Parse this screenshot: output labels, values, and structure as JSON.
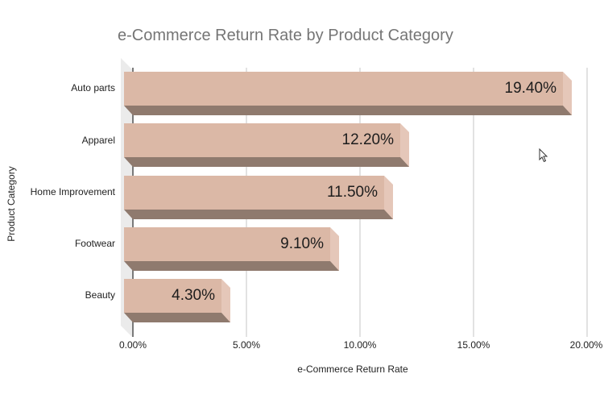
{
  "chart_data": {
    "type": "bar",
    "orientation": "horizontal",
    "style": "3d",
    "title": "e-Commerce Return Rate by Product Category",
    "xlabel": "e-Commerce Return Rate",
    "ylabel": "Product Category",
    "categories": [
      "Auto parts",
      "Apparel",
      "Home Improvement",
      "Footwear",
      "Beauty"
    ],
    "values": [
      19.4,
      12.2,
      11.5,
      9.1,
      4.3
    ],
    "value_labels": [
      "19.40%",
      "12.20%",
      "11.50%",
      "9.10%",
      "4.30%"
    ],
    "xlim": [
      0,
      20
    ],
    "x_ticks": [
      0,
      5,
      10,
      15,
      20
    ],
    "x_tick_labels": [
      "0.00%",
      "5.00%",
      "10.00%",
      "15.00%",
      "20.00%"
    ],
    "grid": true,
    "legend": "none",
    "bar_color": "#dbb8a6"
  }
}
